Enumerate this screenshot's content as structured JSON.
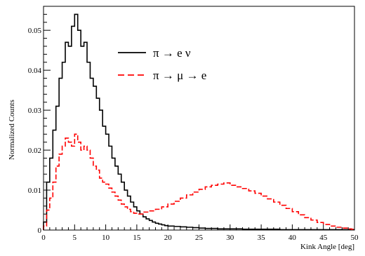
{
  "chart_data": {
    "type": "line",
    "title": "",
    "xlabel": "Kink Angle [deg]",
    "ylabel": "Normalized Counts",
    "xlim": [
      0,
      50
    ],
    "ylim": [
      0,
      0.056
    ],
    "x_ticks": [
      0,
      5,
      10,
      15,
      20,
      25,
      30,
      35,
      40,
      45,
      50
    ],
    "y_ticks": [
      0,
      0.01,
      0.02,
      0.03,
      0.04,
      0.05
    ],
    "y_tick_labels": [
      "0",
      "0.01",
      "0.02",
      "0.03",
      "0.04",
      "0.05"
    ],
    "grid": false,
    "legend_position": "top-right",
    "bin_width": 0.5,
    "series": [
      {
        "name": "π → e ν",
        "color": "#000000",
        "style": "solid",
        "x": [
          0,
          0.5,
          1,
          1.5,
          2,
          2.5,
          3,
          3.5,
          4,
          4.5,
          5,
          5.5,
          6,
          6.5,
          7,
          7.5,
          8,
          8.5,
          9,
          9.5,
          10,
          10.5,
          11,
          11.5,
          12,
          12.5,
          13,
          13.5,
          14,
          14.5,
          15,
          15.5,
          16,
          16.5,
          17,
          17.5,
          18,
          18.5,
          19,
          19.5,
          20,
          21,
          22,
          23,
          24,
          25,
          26,
          27,
          28,
          29,
          30,
          32,
          34,
          36,
          38,
          40,
          42,
          44,
          46,
          48,
          49.5
        ],
        "values": [
          0.002,
          0.012,
          0.018,
          0.025,
          0.031,
          0.038,
          0.042,
          0.047,
          0.046,
          0.051,
          0.054,
          0.05,
          0.046,
          0.047,
          0.042,
          0.038,
          0.036,
          0.033,
          0.03,
          0.026,
          0.024,
          0.021,
          0.018,
          0.016,
          0.014,
          0.012,
          0.01,
          0.0085,
          0.007,
          0.0058,
          0.0048,
          0.004,
          0.0033,
          0.0028,
          0.0024,
          0.002,
          0.0017,
          0.0015,
          0.0013,
          0.0011,
          0.001,
          0.0009,
          0.0008,
          0.0007,
          0.0006,
          0.0005,
          0.0004,
          0.0004,
          0.0003,
          0.0003,
          0.0003,
          0.0002,
          0.0002,
          0.0002,
          0.0001,
          0.0001,
          0.0001,
          0.0001,
          0.0001,
          0.0001,
          0.0001
        ]
      },
      {
        "name": "π → μ → e",
        "color": "#ff0000",
        "style": "dashed",
        "x": [
          0,
          0.5,
          1,
          1.5,
          2,
          2.5,
          3,
          3.5,
          4,
          4.5,
          5,
          5.5,
          6,
          6.5,
          7,
          7.5,
          8,
          8.5,
          9,
          9.5,
          10,
          10.5,
          11,
          11.5,
          12,
          12.5,
          13,
          13.5,
          14,
          14.5,
          15,
          16,
          17,
          18,
          19,
          20,
          21,
          22,
          23,
          24,
          25,
          26,
          27,
          28,
          29,
          30,
          31,
          32,
          33,
          34,
          35,
          36,
          37,
          38,
          39,
          40,
          41,
          42,
          43,
          44,
          45,
          46,
          47,
          48,
          49,
          49.5
        ],
        "values": [
          0.001,
          0.005,
          0.008,
          0.012,
          0.016,
          0.019,
          0.021,
          0.023,
          0.022,
          0.021,
          0.024,
          0.022,
          0.02,
          0.021,
          0.02,
          0.018,
          0.016,
          0.015,
          0.013,
          0.012,
          0.0115,
          0.0105,
          0.0095,
          0.0085,
          0.0075,
          0.0065,
          0.0058,
          0.0052,
          0.0046,
          0.0042,
          0.004,
          0.0045,
          0.0048,
          0.0052,
          0.0058,
          0.0065,
          0.0072,
          0.008,
          0.0088,
          0.0095,
          0.0102,
          0.0108,
          0.0112,
          0.0115,
          0.0118,
          0.0112,
          0.0108,
          0.0104,
          0.0098,
          0.0092,
          0.0085,
          0.0078,
          0.007,
          0.0062,
          0.0054,
          0.0046,
          0.0038,
          0.0031,
          0.0025,
          0.0019,
          0.0014,
          0.001,
          0.0007,
          0.0005,
          0.0003,
          0.0002
        ]
      }
    ]
  }
}
